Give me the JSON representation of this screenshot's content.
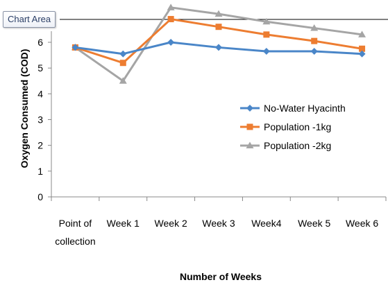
{
  "tooltip": "Chart Area",
  "chart_data": {
    "type": "line",
    "title": "",
    "xlabel": "Number of Weeks",
    "ylabel": "Oxygen Consumed (COD)",
    "categories": [
      "Point of collection",
      "Week 1",
      "Week 2",
      "Week 3",
      "Week4",
      "Week 5",
      "Week 6"
    ],
    "category_lines": [
      [
        "Point of",
        "collection"
      ],
      [
        "Week 1"
      ],
      [
        "Week 2"
      ],
      [
        "Week 3"
      ],
      [
        "Week4"
      ],
      [
        "Week 5"
      ],
      [
        "Week 6"
      ]
    ],
    "ylim": [
      0,
      7
    ],
    "yticks": [
      0,
      1,
      2,
      3,
      4,
      5,
      6,
      7
    ],
    "grid": false,
    "legend_position": "right",
    "series": [
      {
        "name": "No-Water Hyacinth",
        "color": "#4a86c8",
        "marker": "diamond",
        "values": [
          5.8,
          5.55,
          6.0,
          5.8,
          5.65,
          5.65,
          5.55
        ]
      },
      {
        "name": "Population -1kg",
        "color": "#ed7d31",
        "marker": "square",
        "values": [
          5.8,
          5.2,
          6.9,
          6.6,
          6.3,
          6.05,
          5.75
        ]
      },
      {
        "name": "Population -2kg",
        "color": "#a5a5a5",
        "marker": "triangle",
        "values": [
          5.8,
          4.5,
          7.35,
          7.1,
          6.8,
          6.55,
          6.3
        ]
      }
    ]
  }
}
